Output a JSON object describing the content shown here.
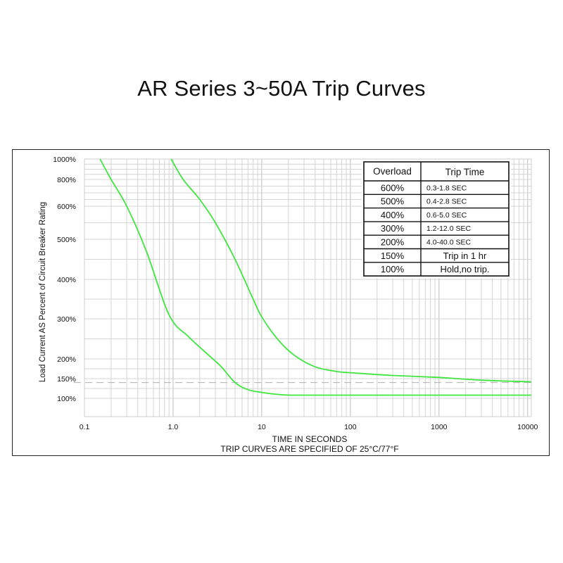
{
  "chart_data": {
    "type": "line",
    "title": "AR Series 3~50A Trip Curves",
    "xlabel": "TIME IN SECONDS",
    "xnote": "TRIP CURVES ARE SPECIFIED OF 25°C/77°F",
    "ylabel": "Load Current AS Percent of Circuit Breaker Rating",
    "xscale": "log",
    "xlim": [
      0.1,
      11000
    ],
    "ylim": [
      80,
      1000
    ],
    "x_ticks": [
      {
        "value": 0.1,
        "label": "0.1"
      },
      {
        "value": 1,
        "label": "1.0"
      },
      {
        "value": 10,
        "label": "10"
      },
      {
        "value": 100,
        "label": "100"
      },
      {
        "value": 1000,
        "label": "1000"
      },
      {
        "value": 10000,
        "label": "10000"
      }
    ],
    "y_ticks": [
      {
        "value": 100,
        "label": "100%"
      },
      {
        "value": 150,
        "label": "150%"
      },
      {
        "value": 200,
        "label": "200%"
      },
      {
        "value": 300,
        "label": "300%"
      },
      {
        "value": 400,
        "label": "400%"
      },
      {
        "value": 500,
        "label": "500%"
      },
      {
        "value": 600,
        "label": "600%"
      },
      {
        "value": 800,
        "label": "800%"
      },
      {
        "value": 1000,
        "label": "1000%"
      }
    ],
    "grid": true,
    "series": [
      {
        "color": "#3ee63e",
        "points": [
          [
            0.15,
            1000
          ],
          [
            0.2,
            800
          ],
          [
            0.3,
            600
          ],
          [
            0.5,
            470
          ],
          [
            0.9,
            310
          ],
          [
            1.5,
            255
          ],
          [
            2.5,
            210
          ],
          [
            3.5,
            180
          ],
          [
            5,
            140
          ],
          [
            7,
            122
          ],
          [
            10,
            115
          ],
          [
            15,
            110
          ],
          [
            23,
            108
          ],
          [
            100,
            108
          ],
          [
            1000,
            108
          ],
          [
            11000,
            108
          ]
        ]
      },
      {
        "color": "#3ee63e",
        "points": [
          [
            0.95,
            1000
          ],
          [
            1.3,
            800
          ],
          [
            2,
            650
          ],
          [
            3,
            550
          ],
          [
            5,
            450
          ],
          [
            8,
            350
          ],
          [
            10,
            305
          ],
          [
            15,
            250
          ],
          [
            23,
            210
          ],
          [
            40,
            180
          ],
          [
            70,
            168
          ],
          [
            100,
            165
          ],
          [
            300,
            158
          ],
          [
            1000,
            153
          ],
          [
            3000,
            146
          ],
          [
            11000,
            142
          ]
        ]
      }
    ],
    "reference_line": {
      "y": 140,
      "style": "dashed"
    },
    "table": {
      "headers": [
        "Overload",
        "Trip Time"
      ],
      "rows": [
        [
          "600%",
          "0.3-1.8 SEC"
        ],
        [
          "500%",
          "0.4-2.8 SEC"
        ],
        [
          "400%",
          "0.6-5.0 SEC"
        ],
        [
          "300%",
          "1.2-12.0 SEC"
        ],
        [
          "200%",
          "4.0-40.0 SEC"
        ],
        [
          "150%",
          "Trip in 1 hr"
        ],
        [
          "100%",
          "Hold,no trip."
        ]
      ]
    }
  }
}
